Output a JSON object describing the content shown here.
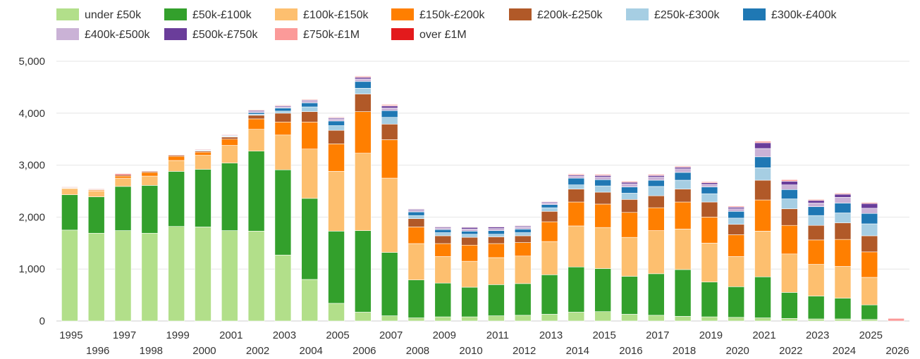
{
  "chart_data": {
    "type": "bar",
    "stacked": true,
    "title": "",
    "xlabel": "",
    "ylabel": "",
    "ylim": [
      0,
      5000
    ],
    "yticks": [
      "0",
      "1,000",
      "2,000",
      "3,000",
      "4,000",
      "5,000"
    ],
    "grid": true,
    "legend_position": "top",
    "categories": [
      "1995",
      "1996",
      "1997",
      "1998",
      "1999",
      "2000",
      "2001",
      "2002",
      "2003",
      "2004",
      "2005",
      "2006",
      "2007",
      "2008",
      "2009",
      "2010",
      "2011",
      "2012",
      "2013",
      "2014",
      "2015",
      "2016",
      "2017",
      "2018",
      "2019",
      "2020",
      "2021",
      "2022",
      "2023",
      "2024",
      "2025",
      "2026"
    ],
    "series": [
      {
        "name": "under £50k",
        "color": "#b2df8a",
        "values": [
          1750,
          1690,
          1740,
          1690,
          1820,
          1810,
          1740,
          1730,
          1270,
          800,
          340,
          170,
          100,
          60,
          80,
          80,
          100,
          110,
          130,
          170,
          180,
          130,
          110,
          90,
          80,
          70,
          60,
          50,
          40,
          40,
          30,
          0
        ]
      },
      {
        "name": "£50k-£100k",
        "color": "#33a02c",
        "values": [
          680,
          700,
          850,
          920,
          1060,
          1110,
          1300,
          1540,
          1640,
          1560,
          1390,
          1570,
          1220,
          730,
          650,
          570,
          600,
          610,
          760,
          870,
          830,
          730,
          800,
          900,
          670,
          590,
          790,
          500,
          440,
          400,
          280,
          0
        ]
      },
      {
        "name": "£100k-£150k",
        "color": "#fdbf6f",
        "values": [
          120,
          110,
          160,
          180,
          210,
          270,
          340,
          420,
          670,
          950,
          1150,
          1490,
          1430,
          700,
          510,
          500,
          520,
          530,
          640,
          790,
          790,
          750,
          830,
          780,
          750,
          580,
          880,
          740,
          610,
          610,
          530,
          0
        ]
      },
      {
        "name": "£150k-£200k",
        "color": "#ff7f00",
        "values": [
          10,
          20,
          40,
          70,
          80,
          60,
          120,
          200,
          250,
          520,
          530,
          800,
          740,
          320,
          250,
          310,
          270,
          260,
          380,
          460,
          450,
          480,
          440,
          520,
          500,
          420,
          600,
          550,
          470,
          520,
          490,
          0
        ]
      },
      {
        "name": "£200k-£250k",
        "color": "#b15928",
        "values": [
          10,
          10,
          20,
          20,
          20,
          20,
          40,
          70,
          170,
          200,
          260,
          340,
          300,
          160,
          150,
          150,
          130,
          130,
          200,
          250,
          230,
          250,
          230,
          250,
          290,
          200,
          380,
          320,
          280,
          320,
          310,
          0
        ]
      },
      {
        "name": "£250k-£300k",
        "color": "#a6cee3",
        "values": [
          0,
          0,
          0,
          0,
          0,
          10,
          10,
          20,
          40,
          90,
          90,
          110,
          130,
          60,
          60,
          60,
          50,
          60,
          70,
          80,
          120,
          120,
          180,
          170,
          160,
          120,
          240,
          190,
          190,
          190,
          230,
          0
        ]
      },
      {
        "name": "£300k-£400k",
        "color": "#1f78b4",
        "values": [
          0,
          0,
          0,
          0,
          0,
          10,
          10,
          30,
          60,
          80,
          90,
          130,
          130,
          70,
          60,
          60,
          70,
          70,
          60,
          130,
          120,
          120,
          120,
          150,
          130,
          130,
          210,
          180,
          170,
          190,
          200,
          0
        ]
      },
      {
        "name": "£400k-£500k",
        "color": "#cab2d6",
        "values": [
          0,
          0,
          0,
          0,
          0,
          10,
          10,
          20,
          20,
          30,
          40,
          50,
          50,
          30,
          30,
          40,
          40,
          40,
          30,
          40,
          50,
          60,
          60,
          70,
          50,
          50,
          160,
          90,
          70,
          110,
          100,
          0
        ]
      },
      {
        "name": "£500k-£750k",
        "color": "#6a3d9a",
        "values": [
          0,
          0,
          0,
          0,
          0,
          0,
          10,
          20,
          20,
          20,
          20,
          30,
          40,
          20,
          20,
          30,
          30,
          20,
          20,
          20,
          30,
          30,
          30,
          30,
          30,
          30,
          110,
          70,
          50,
          60,
          90,
          0
        ]
      },
      {
        "name": "£750k-£1M",
        "color": "#fb9a99",
        "values": [
          0,
          0,
          0,
          0,
          0,
          0,
          0,
          0,
          10,
          10,
          10,
          20,
          20,
          10,
          10,
          10,
          10,
          10,
          10,
          20,
          20,
          20,
          20,
          20,
          20,
          20,
          30,
          30,
          20,
          20,
          20,
          50
        ]
      },
      {
        "name": "over £1M",
        "color": "#e31a1c",
        "values": [
          10,
          10,
          20,
          10,
          10,
          10,
          10,
          10,
          10,
          10,
          10,
          10,
          10,
          0,
          0,
          0,
          0,
          0,
          0,
          0,
          0,
          0,
          0,
          0,
          0,
          0,
          0,
          0,
          0,
          0,
          0,
          0
        ]
      }
    ]
  }
}
